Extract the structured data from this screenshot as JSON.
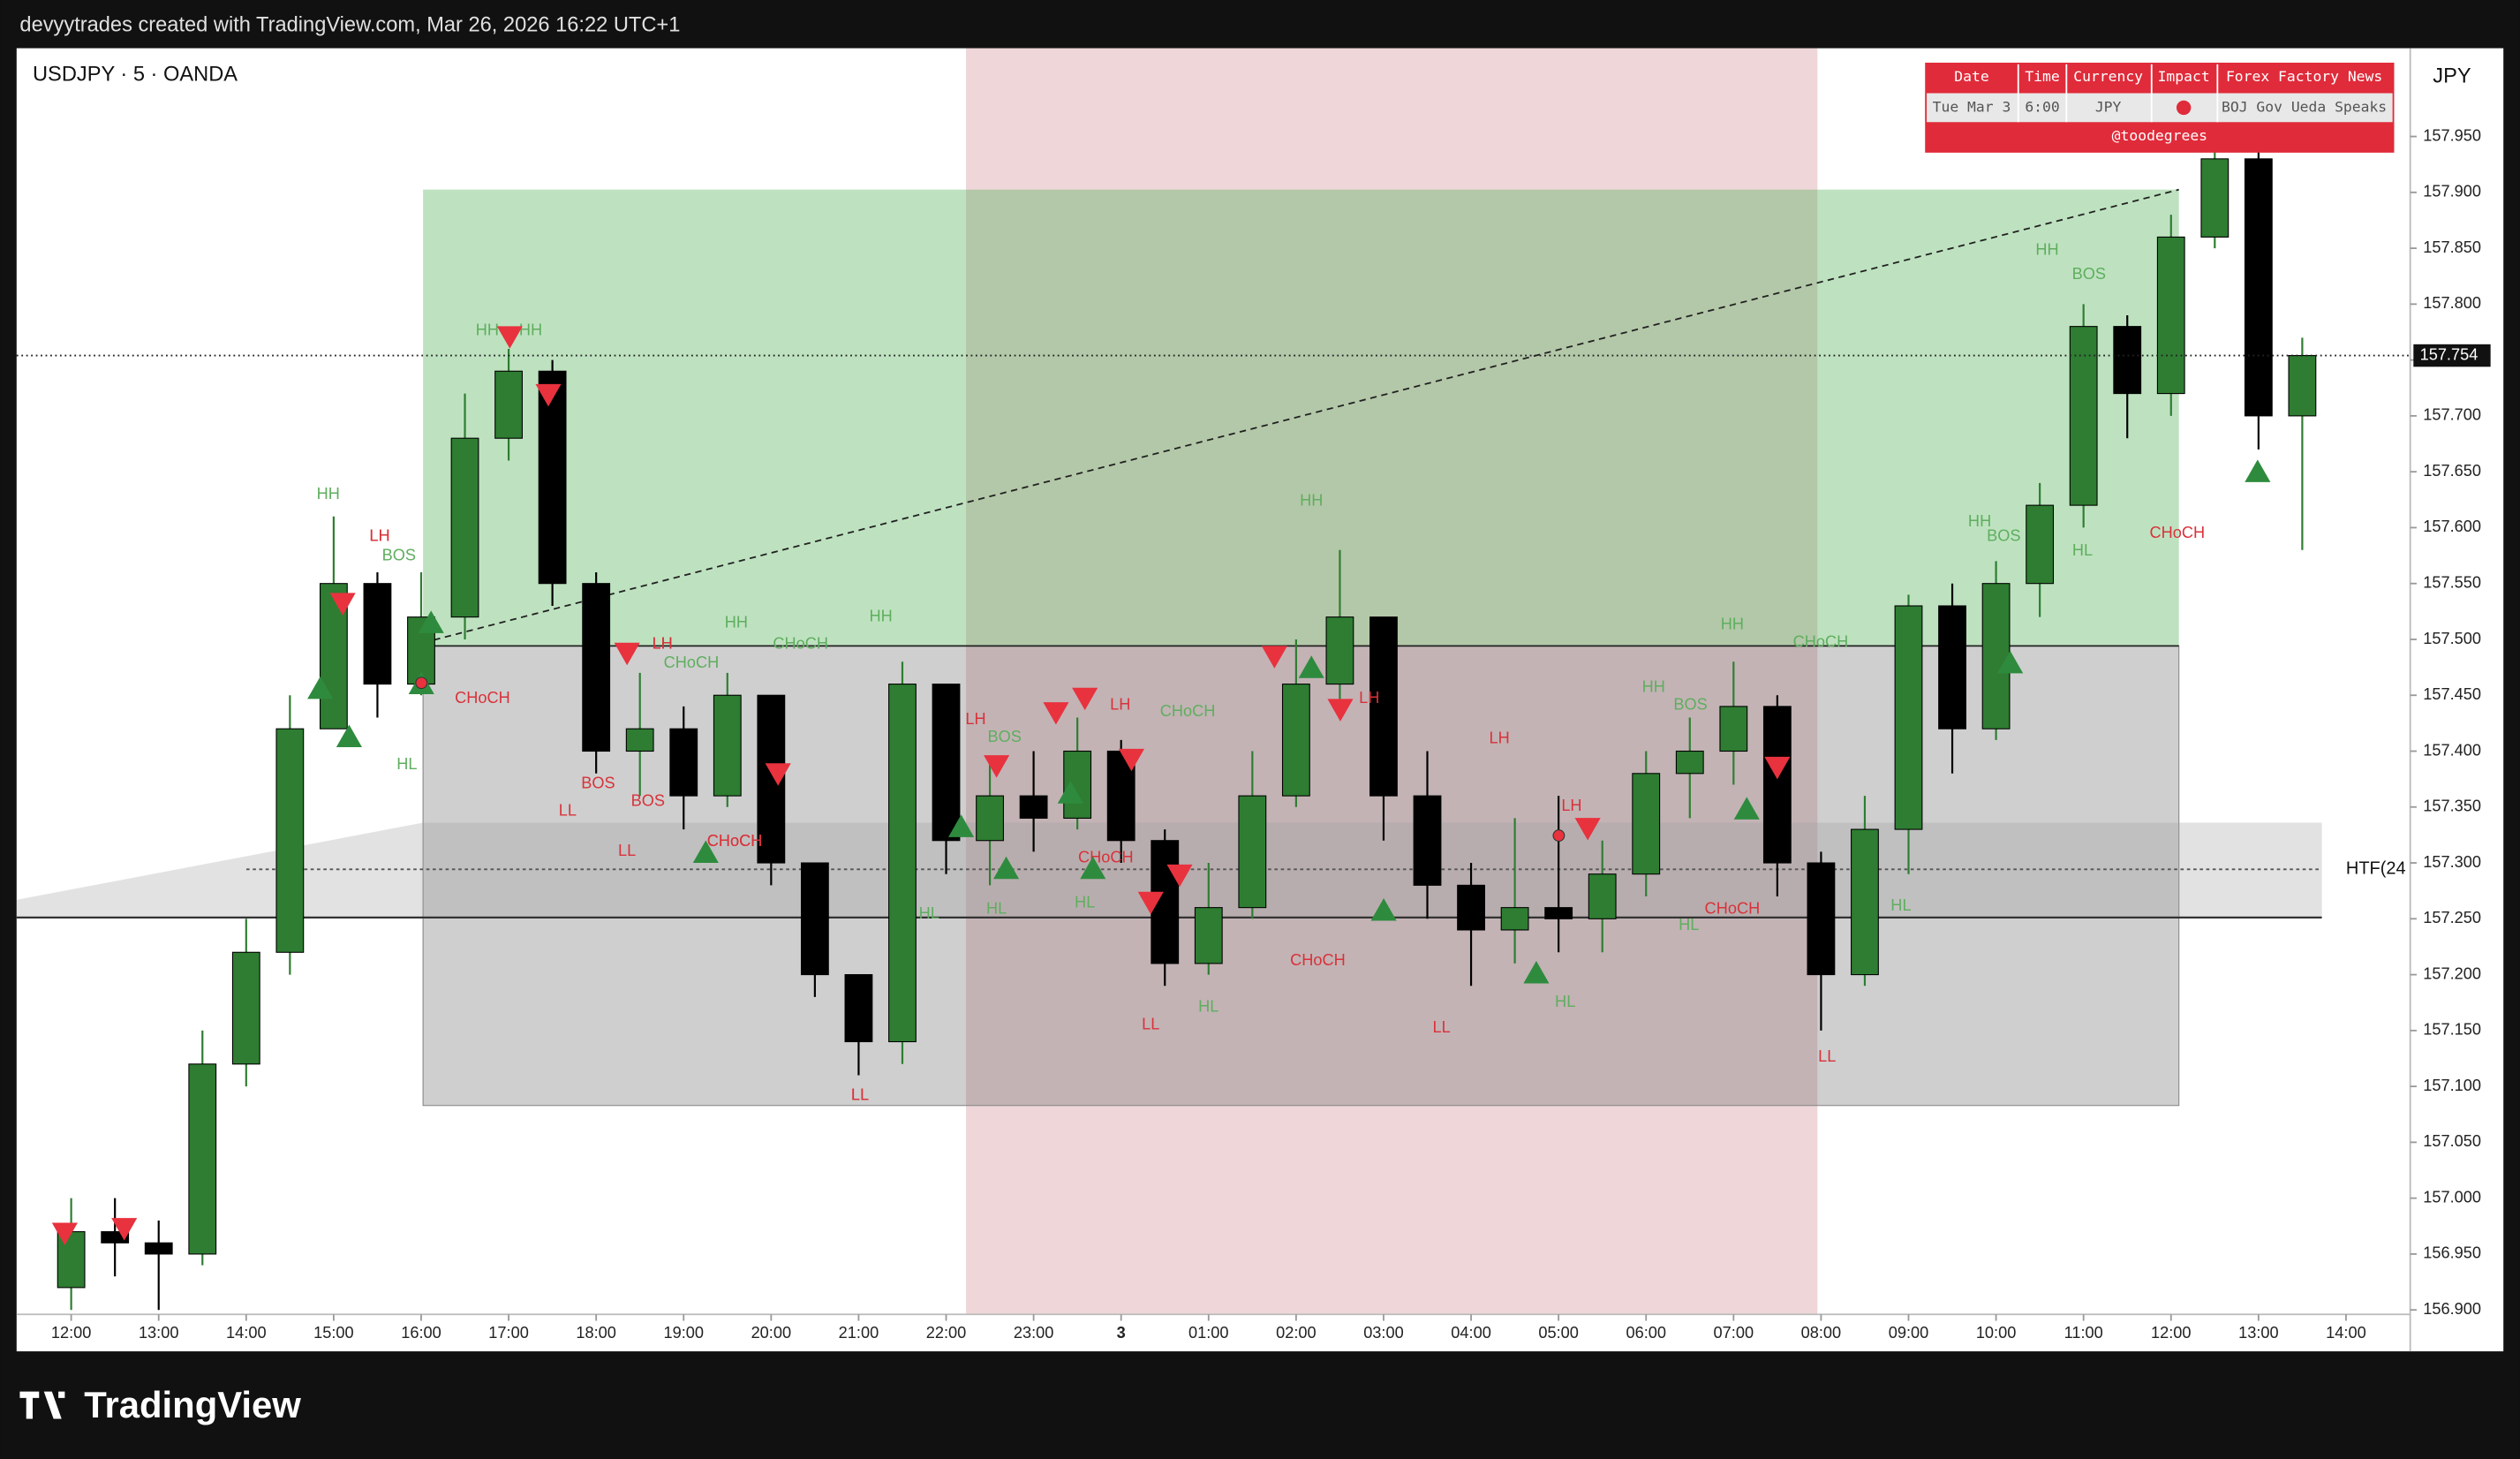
{
  "header": {
    "caption": "devyytrades created with TradingView.com, Mar 26, 2026 16:22 UTC+1"
  },
  "footer": {
    "logo": "TradingView"
  },
  "news_table": {
    "headers": [
      "Date",
      "Time",
      "Currency",
      "Impact",
      "Forex Factory News"
    ],
    "row": {
      "date": "Tue Mar 3",
      "time": "6:00",
      "currency": "JPY",
      "news": "BOJ Gov Ueda Speaks"
    },
    "credit": "@toodegrees"
  },
  "chart_data": {
    "type": "candlestick",
    "title": "USDJPY · 5 · OANDA",
    "currency_label": "JPY",
    "last_price": 157.754,
    "htf_label": "HTF(24",
    "up_color": "#2e7d32",
    "down_color": "#000000",
    "x": [
      12,
      12.5,
      13,
      13.5,
      14,
      14.5,
      15,
      15.5,
      16,
      16.5,
      17,
      17.5,
      18,
      18.5,
      19,
      19.5,
      20,
      20.5,
      21,
      21.5,
      22,
      22.5,
      23,
      23.5,
      24,
      24.5,
      25,
      25.5,
      26,
      26.5,
      27,
      27.5,
      28,
      28.5,
      29,
      29.5,
      30,
      30.5,
      31,
      31.5,
      32,
      32.5,
      33,
      33.5,
      34,
      34.5,
      35,
      35.5,
      36,
      36.5,
      37,
      37.5
    ],
    "open": [
      156.92,
      156.97,
      156.96,
      156.95,
      157.12,
      157.22,
      157.42,
      157.55,
      157.46,
      157.52,
      157.68,
      157.74,
      157.55,
      157.4,
      157.42,
      157.36,
      157.45,
      157.3,
      157.2,
      157.14,
      157.46,
      157.32,
      157.36,
      157.34,
      157.4,
      157.32,
      157.21,
      157.26,
      157.36,
      157.46,
      157.52,
      157.36,
      157.28,
      157.24,
      157.26,
      157.25,
      157.29,
      157.38,
      157.4,
      157.44,
      157.3,
      157.2,
      157.33,
      157.53,
      157.42,
      157.55,
      157.62,
      157.78,
      157.72,
      157.86,
      157.93,
      157.7
    ],
    "high": [
      157.0,
      157.0,
      156.98,
      157.15,
      157.25,
      157.45,
      157.61,
      157.56,
      157.56,
      157.72,
      157.76,
      157.75,
      157.56,
      157.47,
      157.44,
      157.47,
      157.45,
      157.3,
      157.2,
      157.48,
      157.46,
      157.39,
      157.4,
      157.43,
      157.41,
      157.33,
      157.3,
      157.4,
      157.5,
      157.58,
      157.52,
      157.4,
      157.3,
      157.34,
      157.36,
      157.32,
      157.4,
      157.43,
      157.48,
      157.45,
      157.31,
      157.36,
      157.54,
      157.55,
      157.57,
      157.64,
      157.8,
      157.79,
      157.88,
      157.97,
      157.94,
      157.77
    ],
    "low": [
      156.9,
      156.93,
      156.9,
      156.94,
      157.1,
      157.2,
      157.42,
      157.43,
      157.45,
      157.5,
      157.66,
      157.53,
      157.38,
      157.36,
      157.33,
      157.35,
      157.28,
      157.18,
      157.11,
      157.12,
      157.29,
      157.28,
      157.31,
      157.33,
      157.3,
      157.19,
      157.2,
      157.25,
      157.35,
      157.44,
      157.32,
      157.25,
      157.19,
      157.21,
      157.22,
      157.22,
      157.27,
      157.34,
      157.37,
      157.27,
      157.15,
      157.19,
      157.29,
      157.38,
      157.41,
      157.52,
      157.6,
      157.68,
      157.7,
      157.85,
      157.67,
      157.58
    ],
    "close": [
      156.97,
      156.96,
      156.95,
      157.12,
      157.22,
      157.42,
      157.55,
      157.46,
      157.52,
      157.68,
      157.74,
      157.55,
      157.4,
      157.42,
      157.36,
      157.45,
      157.3,
      157.2,
      157.14,
      157.46,
      157.32,
      157.36,
      157.34,
      157.4,
      157.32,
      157.21,
      157.26,
      157.36,
      157.46,
      157.52,
      157.36,
      157.28,
      157.24,
      157.26,
      157.25,
      157.29,
      157.38,
      157.4,
      157.44,
      157.3,
      157.2,
      157.33,
      157.53,
      157.42,
      157.55,
      157.62,
      157.78,
      157.72,
      157.86,
      157.93,
      157.7,
      157.754
    ],
    "xlim": [
      11.376,
      38.734
    ],
    "xticks": [
      {
        "value": 12,
        "label": "12:00"
      },
      {
        "value": 13,
        "label": "13:00"
      },
      {
        "value": 14,
        "label": "14:00"
      },
      {
        "value": 15,
        "label": "15:00"
      },
      {
        "value": 16,
        "label": "16:00"
      },
      {
        "value": 17,
        "label": "17:00"
      },
      {
        "value": 18,
        "label": "18:00"
      },
      {
        "value": 19,
        "label": "19:00"
      },
      {
        "value": 20,
        "label": "20:00"
      },
      {
        "value": 21,
        "label": "21:00"
      },
      {
        "value": 22,
        "label": "22:00"
      },
      {
        "value": 23,
        "label": "23:00"
      },
      {
        "value": 24,
        "label": "3"
      },
      {
        "value": 25,
        "label": "01:00"
      },
      {
        "value": 26,
        "label": "02:00"
      },
      {
        "value": 27,
        "label": "03:00"
      },
      {
        "value": 28,
        "label": "04:00"
      },
      {
        "value": 29,
        "label": "05:00"
      },
      {
        "value": 30,
        "label": "06:00"
      },
      {
        "value": 31,
        "label": "07:00"
      },
      {
        "value": 32,
        "label": "08:00"
      },
      {
        "value": 33,
        "label": "09:00"
      },
      {
        "value": 34,
        "label": "10:00"
      },
      {
        "value": 35,
        "label": "11:00"
      },
      {
        "value": 36,
        "label": "12:00"
      },
      {
        "value": 37,
        "label": "13:00"
      },
      {
        "value": 38,
        "label": "14:00"
      }
    ],
    "ylim": [
      156.896,
      158.029
    ],
    "yticks": [
      {
        "value": 156.9,
        "label": "156.900"
      },
      {
        "value": 156.95,
        "label": "156.950"
      },
      {
        "value": 157.0,
        "label": "157.000"
      },
      {
        "value": 157.05,
        "label": "157.050"
      },
      {
        "value": 157.1,
        "label": "157.100"
      },
      {
        "value": 157.15,
        "label": "157.150"
      },
      {
        "value": 157.2,
        "label": "157.200"
      },
      {
        "value": 157.25,
        "label": "157.250"
      },
      {
        "value": 157.3,
        "label": "157.300"
      },
      {
        "value": 157.35,
        "label": "157.350"
      },
      {
        "value": 157.4,
        "label": "157.400"
      },
      {
        "value": 157.45,
        "label": "157.450"
      },
      {
        "value": 157.5,
        "label": "157.500"
      },
      {
        "value": 157.55,
        "label": "157.550"
      },
      {
        "value": 157.6,
        "label": "157.600"
      },
      {
        "value": 157.65,
        "label": "157.650"
      },
      {
        "value": 157.7,
        "label": "157.700"
      },
      {
        "value": 157.75,
        "label": "157.750"
      },
      {
        "value": 157.8,
        "label": "157.800"
      },
      {
        "value": 157.85,
        "label": "157.850"
      },
      {
        "value": 157.9,
        "label": "157.900"
      },
      {
        "value": 157.95,
        "label": "157.950"
      }
    ],
    "annotations": [
      "HH",
      "LH",
      "BOS",
      "CHoCH",
      "HL",
      "HH",
      "HH",
      "LH",
      "CHoCH",
      "BOS",
      "BOS",
      "LL",
      "LL",
      "CHoCH",
      "HH",
      "CHoCH",
      "HH",
      "LL",
      "HL",
      "LH",
      "BOS",
      "HL",
      "LH",
      "CHoCH",
      "CHoCH",
      "HL",
      "LL",
      "HL",
      "CHoCH",
      "HH",
      "LH",
      "LH",
      "LL",
      "HL",
      "LH",
      "HH",
      "BOS",
      "HL",
      "CHoCH",
      "HH",
      "CHoCH",
      "LL",
      "HL",
      "HH",
      "BOS",
      "HL",
      "HH",
      "BOS",
      "CHoCH",
      "LH",
      "CHoCH",
      "LL",
      "LH"
    ]
  }
}
